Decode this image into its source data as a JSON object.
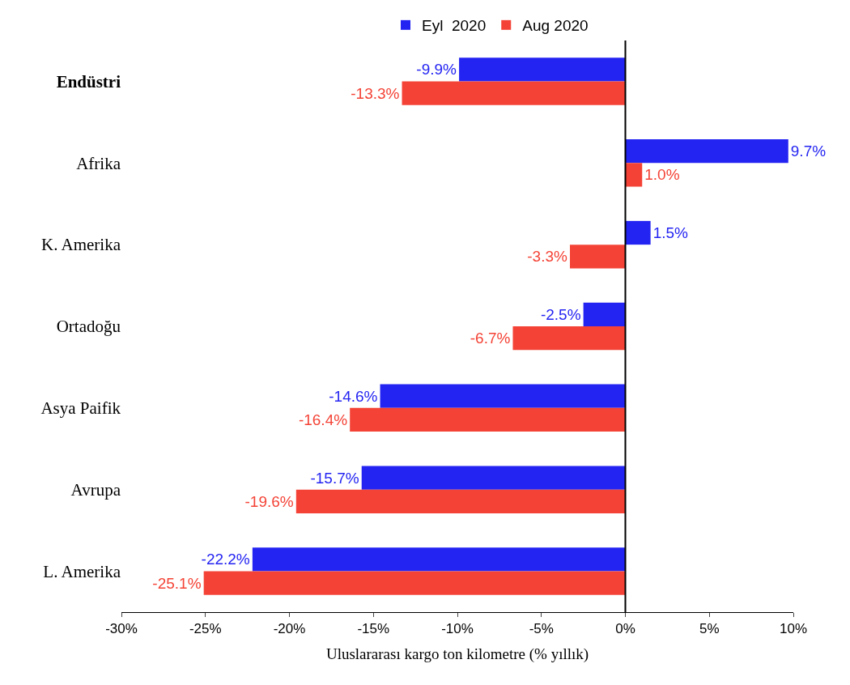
{
  "chart_data": {
    "type": "bar",
    "orientation": "horizontal",
    "xlabel": "Uluslararası kargo ton kilometre (% yıllık)",
    "categories": [
      "Endüstri",
      "Afrika",
      "K. Amerika",
      "Ortadoğu",
      "Asya Paifik",
      "Avrupa",
      "L. Amerika"
    ],
    "series": [
      {
        "name": "Eyl  2020",
        "color": "#2424f2",
        "values": [
          -9.9,
          9.7,
          1.5,
          -2.5,
          -14.6,
          -15.7,
          -22.2
        ],
        "value_labels": [
          "-9.9%",
          "9.7%",
          "1.5%",
          "-2.5%",
          "-14.6%",
          "-15.7%",
          "-22.2%"
        ]
      },
      {
        "name": "Aug 2020",
        "color": "#f44336",
        "values": [
          -13.3,
          1.0,
          -3.3,
          -6.7,
          -16.4,
          -19.6,
          -25.1
        ],
        "value_labels": [
          "-13.3%",
          "1.0%",
          "-3.3%",
          "-6.7%",
          "-16.4%",
          "-19.6%",
          "-25.1%"
        ]
      }
    ],
    "xlim": [
      -30,
      10
    ],
    "xticks": [
      {
        "value": -30,
        "label": "-30%"
      },
      {
        "value": -25,
        "label": "-25%"
      },
      {
        "value": -20,
        "label": "-20%"
      },
      {
        "value": -15,
        "label": "-15%"
      },
      {
        "value": -10,
        "label": "-10%"
      },
      {
        "value": -5,
        "label": "-5%"
      },
      {
        "value": 0,
        "label": "0%"
      },
      {
        "value": 5,
        "label": "5%"
      },
      {
        "value": 10,
        "label": "10%"
      }
    ],
    "ref_lines": [
      {
        "axis": "x",
        "value": 0,
        "color": "#000000"
      }
    ],
    "legend": "top"
  }
}
